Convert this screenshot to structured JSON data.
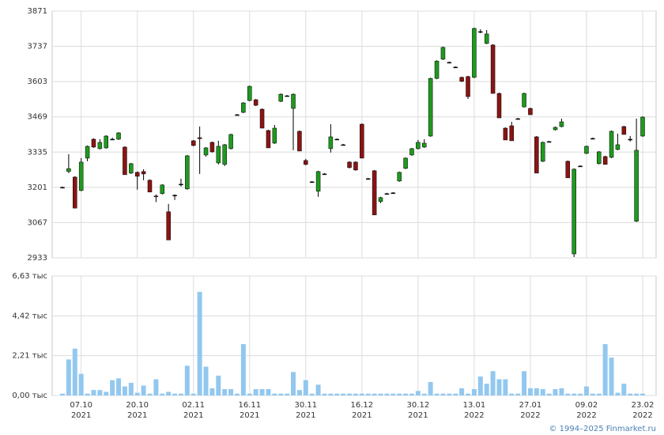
{
  "chart_data": {
    "type": "candlestick",
    "categories": [
      null,
      null,
      null,
      [
        "07.10",
        "2021"
      ],
      null,
      null,
      null,
      null,
      null,
      null,
      null,
      null,
      [
        "20.10",
        "2021"
      ],
      null,
      null,
      null,
      null,
      null,
      null,
      null,
      null,
      [
        "02.11",
        "2021"
      ],
      null,
      null,
      null,
      null,
      null,
      null,
      null,
      null,
      [
        "16.11",
        "2021"
      ],
      null,
      null,
      null,
      null,
      null,
      null,
      null,
      null,
      [
        "30.11",
        "2021"
      ],
      null,
      null,
      null,
      null,
      null,
      null,
      null,
      null,
      [
        "16.12",
        "2021"
      ],
      null,
      null,
      null,
      null,
      null,
      null,
      null,
      null,
      [
        "30.12",
        "2021"
      ],
      null,
      null,
      null,
      null,
      null,
      null,
      null,
      null,
      [
        "13.01",
        "2022"
      ],
      null,
      null,
      null,
      null,
      null,
      null,
      null,
      null,
      [
        "27.01",
        "2022"
      ],
      null,
      null,
      null,
      null,
      null,
      null,
      null,
      null,
      [
        "09.02",
        "2022"
      ],
      null,
      null,
      null,
      null,
      null,
      null,
      null,
      null,
      [
        "23.02",
        "2022"
      ]
    ],
    "open": [
      3201,
      3261,
      3240,
      3189,
      3312,
      3384,
      3348,
      3351,
      3384,
      3384,
      3354,
      3255,
      3258,
      3261,
      3228,
      3168,
      3177,
      3108,
      3171,
      3213,
      3195,
      3378,
      3390,
      3324,
      3372,
      3294,
      3288,
      3348,
      3477,
      3486,
      3531,
      3534,
      3498,
      3417,
      3369,
      3528,
      3549,
      3501,
      3414,
      3303,
      3222,
      3186,
      3252,
      3348,
      3384,
      3363,
      3297,
      3297,
      3441,
      3234,
      3264,
      3147,
      3177,
      3180,
      3225,
      3273,
      3324,
      3348,
      3354,
      3396,
      3615,
      3688,
      3676,
      3658,
      3619,
      3622,
      3619,
      3793,
      3748,
      3742,
      3558,
      3426,
      3435,
      3462,
      3507,
      3501,
      3393,
      3300,
      3375,
      3420,
      3432,
      3300,
      2948,
      3282,
      3330,
      3387,
      3291,
      3318,
      3315,
      3345,
      3432,
      3384,
      3072,
      3396
    ],
    "high": [
      3204,
      3327,
      3243,
      3312,
      3360,
      3387,
      3384,
      3399,
      3390,
      3411,
      3357,
      3294,
      3261,
      3270,
      3231,
      3174,
      3213,
      3138,
      3174,
      3234,
      3324,
      3381,
      3432,
      3354,
      3375,
      3378,
      3366,
      3405,
      3480,
      3525,
      3588,
      3537,
      3501,
      3420,
      3438,
      3558,
      3552,
      3558,
      3417,
      3309,
      3225,
      3264,
      3255,
      3441,
      3387,
      3366,
      3300,
      3300,
      3444,
      3237,
      3267,
      3165,
      3180,
      3183,
      3261,
      3315,
      3351,
      3381,
      3384,
      3618,
      3684,
      3736,
      3679,
      3661,
      3622,
      3625,
      3808,
      3802,
      3799,
      3745,
      3561,
      3429,
      3450,
      3465,
      3561,
      3504,
      3396,
      3375,
      3378,
      3432,
      3462,
      3303,
      3273,
      3285,
      3360,
      3390,
      3339,
      3321,
      3417,
      3405,
      3435,
      3396,
      3462,
      3471
    ],
    "low": [
      3198,
      3255,
      3122,
      3186,
      3300,
      3351,
      3345,
      3348,
      3381,
      3381,
      3249,
      3252,
      3192,
      3228,
      3183,
      3145,
      3174,
      3001,
      3153,
      3204,
      3192,
      3357,
      3252,
      3318,
      3333,
      3288,
      3282,
      3345,
      3474,
      3483,
      3528,
      3510,
      3426,
      3351,
      3366,
      3525,
      3546,
      3342,
      3339,
      3285,
      3219,
      3165,
      3249,
      3333,
      3381,
      3360,
      3273,
      3264,
      3312,
      3231,
      3096,
      3141,
      3174,
      3177,
      3222,
      3270,
      3321,
      3345,
      3351,
      3393,
      3612,
      3685,
      3673,
      3655,
      3601,
      3537,
      3616,
      3787,
      3745,
      3558,
      3465,
      3381,
      3378,
      3459,
      3504,
      3477,
      3255,
      3297,
      3372,
      3417,
      3429,
      3237,
      2936,
      3279,
      3327,
      3384,
      3288,
      3288,
      3312,
      3342,
      3402,
      3375,
      3069,
      3393
    ],
    "close": [
      3201,
      3272,
      3122,
      3297,
      3357,
      3354,
      3372,
      3396,
      3384,
      3408,
      3249,
      3291,
      3243,
      3252,
      3183,
      3165,
      3210,
      3001,
      3171,
      3213,
      3321,
      3360,
      3386,
      3351,
      3336,
      3357,
      3363,
      3402,
      3477,
      3522,
      3585,
      3513,
      3426,
      3351,
      3426,
      3555,
      3549,
      3555,
      3339,
      3288,
      3222,
      3261,
      3252,
      3393,
      3384,
      3363,
      3276,
      3267,
      3312,
      3234,
      3096,
      3162,
      3177,
      3180,
      3258,
      3312,
      3348,
      3372,
      3369,
      3615,
      3681,
      3733,
      3676,
      3658,
      3604,
      3546,
      3805,
      3793,
      3784,
      3558,
      3465,
      3381,
      3378,
      3462,
      3558,
      3477,
      3255,
      3372,
      3375,
      3429,
      3450,
      3237,
      3270,
      3282,
      3357,
      3387,
      3336,
      3288,
      3414,
      3363,
      3402,
      3384,
      3342,
      3468
    ],
    "volume": [
      0.1,
      2.0,
      2.6,
      1.2,
      0.1,
      0.3,
      0.3,
      0.2,
      0.85,
      0.95,
      0.5,
      0.7,
      0.15,
      0.55,
      0.1,
      0.9,
      0.1,
      0.2,
      0.1,
      0.1,
      1.65,
      0.1,
      5.75,
      1.6,
      0.4,
      1.1,
      0.35,
      0.35,
      0.1,
      2.85,
      0.1,
      0.35,
      0.35,
      0.35,
      0.1,
      0.1,
      0.1,
      1.3,
      0.3,
      0.85,
      0.1,
      0.6,
      0.1,
      0.1,
      0.1,
      0.1,
      0.1,
      0.1,
      0.1,
      0.1,
      0.1,
      0.1,
      0.1,
      0.1,
      0.1,
      0.1,
      0.1,
      0.25,
      0.1,
      0.75,
      0.1,
      0.1,
      0.1,
      0.1,
      0.4,
      0.1,
      0.35,
      1.05,
      0.65,
      1.35,
      0.9,
      0.9,
      0.1,
      0.1,
      1.35,
      0.4,
      0.4,
      0.35,
      0.1,
      0.35,
      0.4,
      0.1,
      0.1,
      0.1,
      0.5,
      0.1,
      0.1,
      2.85,
      2.1,
      0.15,
      0.65,
      0.1,
      0.1,
      0.1
    ],
    "ylim": [
      2933,
      3871
    ],
    "yticks": [
      3871,
      3737,
      3603,
      3469,
      3335,
      3201,
      3067,
      2933
    ],
    "volume_ylim": [
      0,
      6.63
    ],
    "volume_ticks": [
      {
        "value": 6.63,
        "label": "6,63 тыс"
      },
      {
        "value": 4.42,
        "label": "4,42 тыс"
      },
      {
        "value": 2.21,
        "label": "2,21 тыс"
      },
      {
        "value": 0,
        "label": "0,00 тыс"
      }
    ],
    "up_color": "#1f9a1f",
    "down_color": "#8a1414",
    "flat_color": "#000000",
    "volume_color": "#92c8ef",
    "grid": true
  },
  "footer": "© 1994–2025 Finmarket.ru"
}
